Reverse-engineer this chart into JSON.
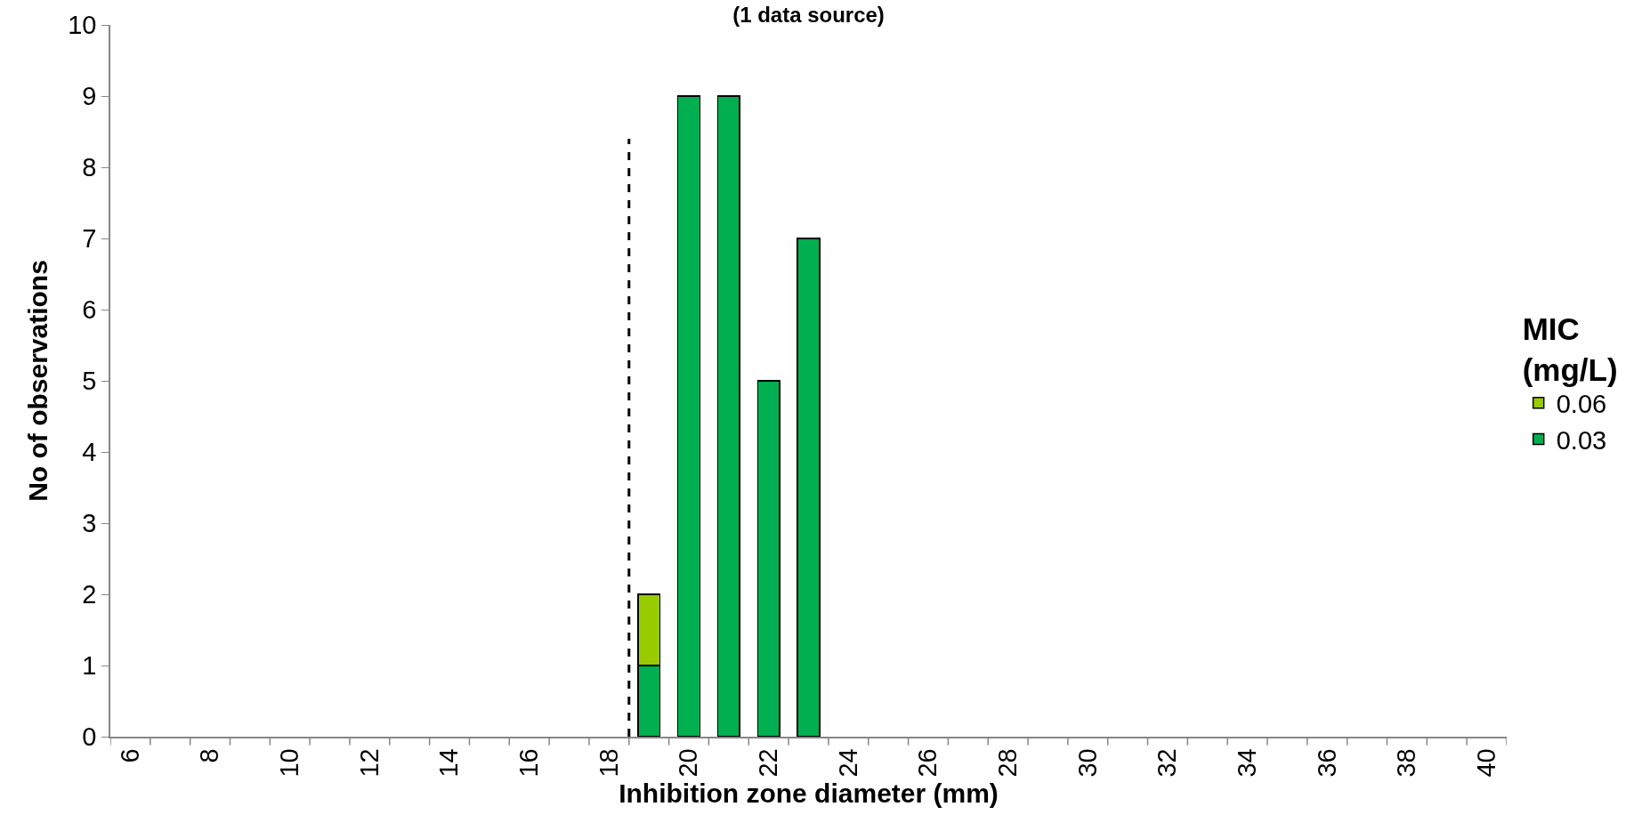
{
  "chart_data": {
    "type": "bar",
    "title": "(1 data source)",
    "xlabel": "Inhibition zone diameter (mm)",
    "ylabel": "No of observations",
    "legend_title": "MIC\n(mg/L)",
    "stacked": true,
    "x": [
      19,
      20,
      21,
      22,
      23
    ],
    "series": [
      {
        "name": "0.03",
        "color": "#00b050",
        "values": [
          1,
          9,
          9,
          5,
          7
        ]
      },
      {
        "name": "0.06",
        "color": "#99cc00",
        "values": [
          1,
          null,
          null,
          null,
          null
        ]
      }
    ],
    "xlim": [
      5.5,
      40.5
    ],
    "xticks": [
      6,
      8,
      10,
      12,
      14,
      16,
      18,
      20,
      22,
      24,
      26,
      28,
      30,
      32,
      34,
      36,
      38,
      40
    ],
    "ylim": [
      0,
      10
    ],
    "yticks": [
      0,
      1,
      2,
      3,
      4,
      5,
      6,
      7,
      8,
      9,
      10
    ],
    "ref_lines": [
      {
        "axis": "x",
        "value": 18.5,
        "color": "#000000",
        "line_style": "dashed"
      }
    ],
    "legend": "right"
  }
}
